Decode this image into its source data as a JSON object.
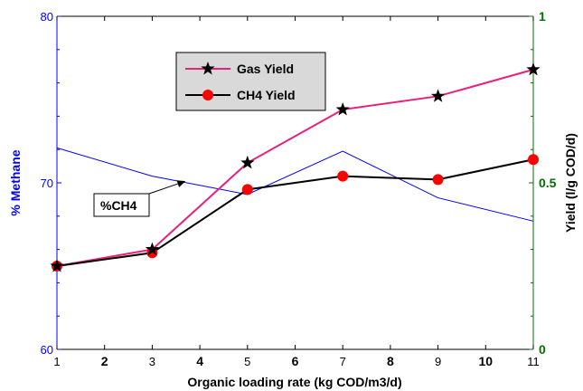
{
  "chart_data": {
    "type": "line",
    "title": "",
    "xlabel": "Organic loading rate (kg COD/m3/d)",
    "ylabel_left": "% Methane",
    "ylabel_right": "Yield (l/g COD/d)",
    "x_ticks": [
      "1",
      "2",
      "3",
      "4",
      "5",
      "6",
      "7",
      "8",
      "9",
      "10",
      "11"
    ],
    "bold_x_ticks": [
      "2",
      "4",
      "6",
      "8",
      "10"
    ],
    "xlim": [
      1,
      11
    ],
    "ylim_left": [
      60,
      80
    ],
    "yticks_left": [
      "60",
      "70",
      "80"
    ],
    "ylim_right": [
      0,
      1
    ],
    "yticks_right": [
      "0",
      "0.5",
      "1"
    ],
    "colors": {
      "left_axis": "#0000ff",
      "right_axis": "#007000",
      "gas_yield": "#e8207c",
      "ch4_yield": "#000000",
      "ch4_yield_marker": "#ff0000",
      "percent_ch4": "#0000ff"
    },
    "legend": {
      "placement": "top-center",
      "items": [
        {
          "label": "Gas Yield",
          "marker": "star-icon"
        },
        {
          "label": "CH4 Yield",
          "marker": "circle-icon"
        }
      ]
    },
    "series": [
      {
        "name": "Gas Yield",
        "axis": "right",
        "x": [
          1,
          3,
          5,
          7,
          9,
          11
        ],
        "values": [
          0.25,
          0.3,
          0.56,
          0.72,
          0.76,
          0.84
        ]
      },
      {
        "name": "CH4 Yield",
        "axis": "right",
        "x": [
          1,
          3,
          5,
          7,
          9,
          11
        ],
        "values": [
          0.25,
          0.29,
          0.48,
          0.52,
          0.51,
          0.57
        ]
      },
      {
        "name": "%CH4",
        "axis": "left",
        "x": [
          1,
          3,
          5,
          7,
          9,
          11
        ],
        "values": [
          72.1,
          70.4,
          69.3,
          71.9,
          69.1,
          67.7
        ]
      }
    ],
    "annotation": {
      "text": "%CH4",
      "arrow_to": {
        "x": 3.7,
        "y": 70.1
      }
    }
  }
}
